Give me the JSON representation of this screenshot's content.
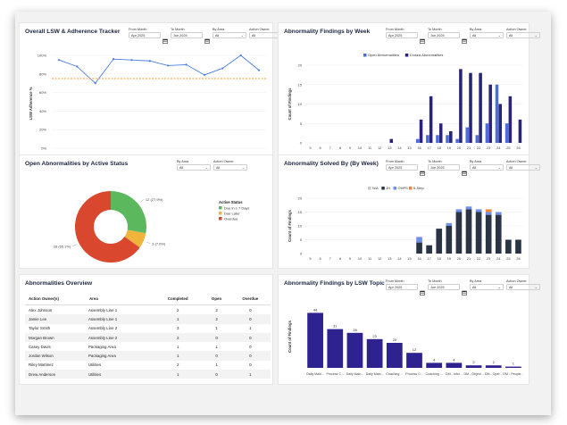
{
  "panels": {
    "lsw": {
      "title": "Overall LSW & Adherence Tracker",
      "filters": [
        {
          "label": "From Month",
          "value": "Apr 2025",
          "type": "date"
        },
        {
          "label": "To Month",
          "value": "Jun 2025",
          "type": "date"
        },
        {
          "label": "By Area",
          "value": "All",
          "type": "select"
        },
        {
          "label": "Action Owner",
          "value": "All",
          "type": "select"
        }
      ],
      "y_label": "LSW Adherence %"
    },
    "findings_week": {
      "title": "Abnormality Findings by Week",
      "filters": [
        {
          "label": "From Month",
          "value": "Apr 2025",
          "type": "date"
        },
        {
          "label": "To Month",
          "value": "Jun 2025",
          "type": "date"
        },
        {
          "label": "By Area",
          "value": "All",
          "type": "select"
        },
        {
          "label": "Action Owner",
          "value": "All",
          "type": "select"
        }
      ],
      "y_label": "Count of Findings"
    },
    "open_status": {
      "title": "Open Abnormalities by Active Status",
      "filters": [
        {
          "label": "By Area",
          "value": "All",
          "type": "select"
        },
        {
          "label": "Action Owner",
          "value": "All",
          "type": "select"
        }
      ],
      "legend_title": "Active Status"
    },
    "solved": {
      "title": "Abnormality Solved By (By Week)",
      "filters": [
        {
          "label": "From Month",
          "value": "Apr 2025",
          "type": "date"
        },
        {
          "label": "To Month",
          "value": "Jun 2025",
          "type": "date"
        },
        {
          "label": "By Area",
          "value": "All",
          "type": "select"
        },
        {
          "label": "Action Owner",
          "value": "All",
          "type": "select"
        }
      ],
      "y_label": "Count of Findings"
    },
    "overview": {
      "title": "Abnormalities Overview",
      "columns": [
        "Action Owner(s)",
        "Area",
        "Completed",
        "Open",
        "Overdue"
      ],
      "rows": [
        [
          "Alex Johnson",
          "Assembly Line 1",
          "2",
          "2",
          "0"
        ],
        [
          "Jamie Lee",
          "Assembly Line 1",
          "1",
          "2",
          "0"
        ],
        [
          "Taylor Smith",
          "Assembly Line 2",
          "3",
          "1",
          "1"
        ],
        [
          "Morgan Brown",
          "Assembly Line 2",
          "2",
          "0",
          "0"
        ],
        [
          "Casey Davis",
          "Packaging Area",
          "1",
          "1",
          "0"
        ],
        [
          "Jordan Wilson",
          "Packaging Area",
          "1",
          "0",
          "0"
        ],
        [
          "Riley Martinez",
          "Utilities",
          "2",
          "1",
          "0"
        ],
        [
          "Drew Anderson",
          "Utilities",
          "1",
          "0",
          "1"
        ]
      ]
    },
    "topic": {
      "title": "Abnormality Findings by LSW Topic",
      "filters": [
        {
          "label": "From Month",
          "value": "Apr 2025",
          "type": "date"
        },
        {
          "label": "To Month",
          "value": "Jun 2025",
          "type": "date"
        },
        {
          "label": "By Area",
          "value": "All",
          "type": "select"
        },
        {
          "label": "Action Owner",
          "value": "All",
          "type": "select"
        }
      ],
      "y_label": "Count of Findings"
    }
  },
  "chart_data": [
    {
      "id": "lsw",
      "type": "line",
      "x": [
        "15",
        "16",
        "17",
        "18",
        "19",
        "20",
        "21",
        "22",
        "23",
        "24",
        "25",
        "26"
      ],
      "series": [
        {
          "values": [
            95,
            88,
            70,
            96,
            95,
            94,
            89,
            90,
            79,
            86,
            100,
            84
          ],
          "color": "#4a7fe0"
        },
        {
          "values": [
            75,
            75,
            75,
            75,
            75,
            75,
            75,
            75,
            75,
            75,
            75,
            75
          ],
          "color": "#f39a3a",
          "style": "dashed"
        }
      ],
      "yticks": [
        "0%",
        "20%",
        "40%",
        "60%",
        "80%",
        "100%"
      ],
      "ylim": [
        0,
        100
      ]
    },
    {
      "id": "findings_week",
      "type": "bar",
      "categories": [
        "5",
        "6",
        "7",
        "8",
        "9",
        "10",
        "11",
        "12",
        "13",
        "14",
        "15",
        "16",
        "17",
        "18",
        "19",
        "20",
        "21",
        "22",
        "23",
        "24",
        "25",
        "26"
      ],
      "series": [
        {
          "name": "Open Abnormalities",
          "color": "#4f6bd8",
          "values": [
            0,
            0,
            0,
            0,
            0,
            0,
            0,
            0,
            0,
            0,
            0,
            1,
            2,
            2,
            2,
            1,
            4,
            2,
            5,
            15,
            5,
            0
          ]
        },
        {
          "name": "Closed Abnormalities",
          "color": "#27247a",
          "values": [
            0,
            0,
            0,
            0,
            0,
            0,
            0,
            0,
            1,
            0,
            0,
            6,
            12,
            5,
            3,
            19,
            18,
            18,
            15,
            10,
            12,
            6
          ]
        }
      ],
      "ylim": [
        0,
        20
      ],
      "yticks": [
        "0",
        "5",
        "10",
        "15",
        "20"
      ]
    },
    {
      "id": "open_status",
      "type": "pie",
      "slices": [
        {
          "name": "Due in ≤ 7 Days",
          "value": 12,
          "label": "12 (27.9%)",
          "color": "#5cb85c"
        },
        {
          "name": "Due Later",
          "value": 3,
          "label": "3 (7.0%)",
          "color": "#f0b43c"
        },
        {
          "name": "Overdue",
          "value": 28,
          "label": "28 (65.1%)",
          "color": "#d9472f"
        }
      ]
    },
    {
      "id": "solved",
      "type": "bar",
      "categories": [
        "5",
        "6",
        "7",
        "8",
        "9",
        "10",
        "11",
        "12",
        "13",
        "14",
        "15",
        "16",
        "17",
        "18",
        "19",
        "20",
        "21",
        "22",
        "23",
        "24",
        "25",
        "26"
      ],
      "series": [
        {
          "name": "N/A",
          "color": "#c8c8c8",
          "values": [
            0,
            0,
            0,
            0,
            0,
            0,
            0,
            0,
            0,
            0,
            0,
            0,
            0,
            0,
            0,
            0,
            0,
            0,
            0,
            0,
            0,
            0
          ]
        },
        {
          "name": "JH",
          "color": "#2b3445",
          "values": [
            0,
            0,
            0,
            0,
            0,
            0,
            0,
            0,
            0,
            0,
            0,
            4,
            3,
            9,
            10,
            15,
            16,
            15,
            14,
            14,
            5,
            5
          ]
        },
        {
          "name": "OHPS",
          "color": "#6f8fe8",
          "values": [
            0,
            0,
            0,
            0,
            0,
            0,
            0,
            0,
            0,
            0,
            0,
            2,
            0,
            0,
            1,
            1,
            1,
            1,
            1,
            1,
            0,
            0
          ]
        },
        {
          "name": "5-Step",
          "color": "#f0873a",
          "values": [
            0,
            0,
            0,
            0,
            0,
            0,
            0,
            0,
            0,
            0,
            0,
            0,
            0,
            0,
            0,
            0,
            0,
            0,
            1,
            0,
            0,
            0
          ]
        }
      ],
      "ylim": [
        0,
        20
      ],
      "yticks": [
        "0",
        "5",
        "10",
        "15",
        "20"
      ]
    },
    {
      "id": "topic",
      "type": "bar",
      "categories": [
        "Daily Main...",
        "Process C...",
        "Daily Main...",
        "Daily Main...",
        "Coaching ...",
        "Process C...",
        "Coaching ...",
        "DM - Infor...",
        "DM - Object...",
        "DM - Oper...",
        "DM - People..."
      ],
      "series": [
        {
          "color": "#2e2190",
          "values": [
            44,
            31,
            28,
            23,
            20,
            12,
            4,
            4,
            2,
            2,
            1
          ]
        }
      ],
      "ylim": [
        0,
        50
      ],
      "yticks": [
        "0",
        "10",
        "20",
        "30",
        "40",
        "50"
      ]
    }
  ]
}
